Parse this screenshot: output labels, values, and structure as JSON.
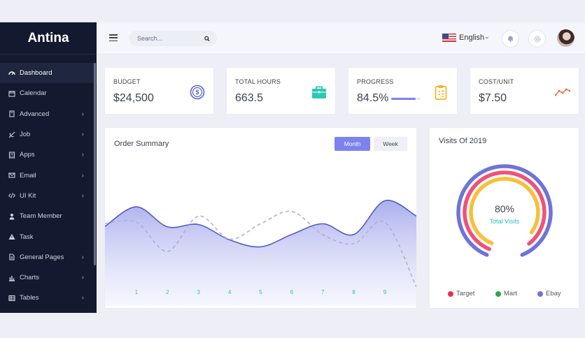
{
  "app": {
    "name": "Antina"
  },
  "sidebar": {
    "items": [
      {
        "label": "Dashboard",
        "icon": "dashboard-icon",
        "active": true,
        "submenu": false
      },
      {
        "label": "Calendar",
        "icon": "calendar-icon",
        "active": false,
        "submenu": false
      },
      {
        "label": "Advanced",
        "icon": "book-icon",
        "active": false,
        "submenu": true
      },
      {
        "label": "Job",
        "icon": "broadcast-off-icon",
        "active": false,
        "submenu": true
      },
      {
        "label": "Apps",
        "icon": "calculator-icon",
        "active": false,
        "submenu": true
      },
      {
        "label": "Email",
        "icon": "mail-icon",
        "active": false,
        "submenu": true
      },
      {
        "label": "UI Kit",
        "icon": "code-icon",
        "active": false,
        "submenu": true
      },
      {
        "label": "Team Member",
        "icon": "user-icon",
        "active": false,
        "submenu": false
      },
      {
        "label": "Task",
        "icon": "warning-icon",
        "active": false,
        "submenu": false
      },
      {
        "label": "General Pages",
        "icon": "file-icon",
        "active": false,
        "submenu": true
      },
      {
        "label": "Charts",
        "icon": "bar-chart-icon",
        "active": false,
        "submenu": true
      },
      {
        "label": "Tables",
        "icon": "table-icon",
        "active": false,
        "submenu": true
      }
    ]
  },
  "header": {
    "search_placeholder": "Search...",
    "language": "English",
    "language_caret": "›"
  },
  "stats": [
    {
      "title": "BUDGET",
      "value": "$24,500",
      "icon": "dollar-coin-icon",
      "color": "#5c63d1"
    },
    {
      "title": "TOTAL HOURS",
      "value": "663.5",
      "icon": "briefcase-icon",
      "color": "#29c9b6"
    },
    {
      "title": "PROGRESS",
      "value": "84.5%",
      "icon": "clipboard-icon",
      "color": "#f2b522",
      "progress": 84.5
    },
    {
      "title": "COST/UNIT",
      "value": "$7.50",
      "icon": "trend-line-icon",
      "color": "#f0653c"
    }
  ],
  "order_summary": {
    "title": "Order Summary",
    "toggle": {
      "month": "Month",
      "week": "Week",
      "selected": "Month"
    },
    "chart_data": {
      "type": "area",
      "x": [
        "1",
        "2",
        "3",
        "4",
        "5",
        "6",
        "7",
        "8",
        "9"
      ],
      "series": [
        {
          "style": "area",
          "values": [
            88,
            62,
            65,
            45,
            36,
            52,
            66,
            52,
            96
          ]
        },
        {
          "style": "dashed",
          "values": [
            68,
            30,
            76,
            46,
            66,
            82,
            52,
            40,
            68
          ]
        }
      ],
      "grid": false
    }
  },
  "visits": {
    "title": "Visits Of 2019",
    "percent": "80%",
    "subtitle": "Total Visits",
    "chart_data": {
      "type": "radial",
      "series": [
        {
          "name": "Ebay",
          "value": 0.82,
          "color": "#6e74d6"
        },
        {
          "name": "Target",
          "value": 0.78,
          "color": "#f0517a"
        },
        {
          "name": "Mart",
          "value": 0.74,
          "color": "#f7bf3a"
        }
      ]
    },
    "legend": [
      {
        "name": "Target",
        "color": "#e5304f"
      },
      {
        "name": "Mart",
        "color": "#2aa948"
      },
      {
        "name": "Ebay",
        "color": "#6e74d6"
      }
    ]
  }
}
